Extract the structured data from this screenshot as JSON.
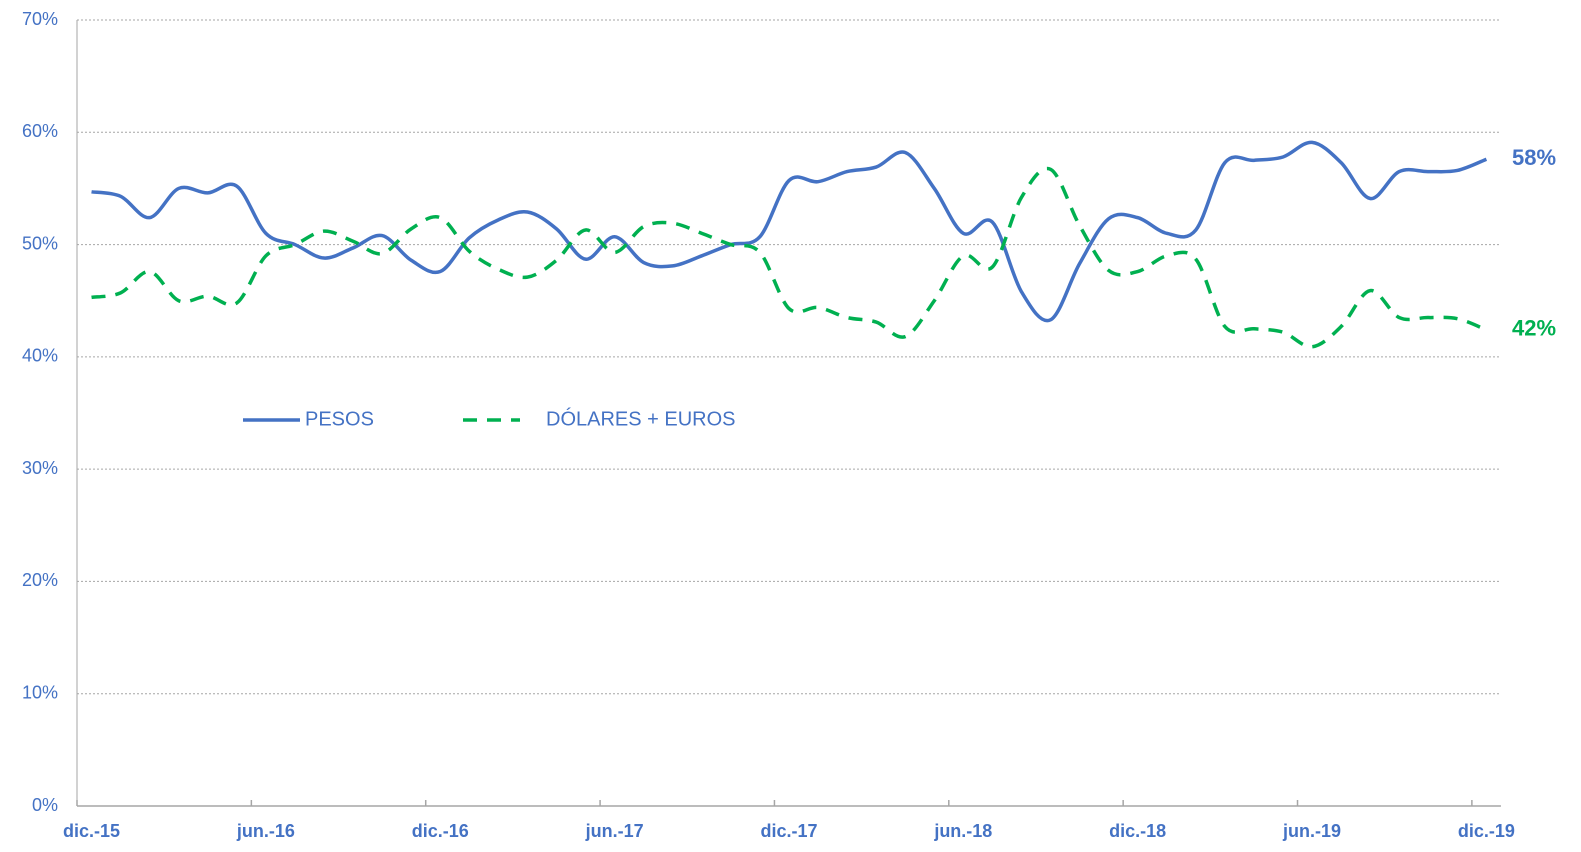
{
  "chart_data": {
    "type": "line",
    "categories": [
      "dic.-15",
      null,
      null,
      null,
      null,
      null,
      "jun.-16",
      null,
      null,
      null,
      null,
      null,
      "dic.-16",
      null,
      null,
      null,
      null,
      null,
      "jun.-17",
      null,
      null,
      null,
      null,
      null,
      "dic.-17",
      null,
      null,
      null,
      null,
      null,
      "jun.-18",
      null,
      null,
      null,
      null,
      null,
      "dic.-18",
      null,
      null,
      null,
      null,
      null,
      "jun.-19",
      null,
      null,
      null,
      null,
      null,
      "dic.-19"
    ],
    "series": [
      {
        "name": "PESOS",
        "color": "#4472c4",
        "dash": false,
        "values": [
          54.7,
          54.3,
          52.4,
          55.0,
          54.6,
          55.2,
          51.0,
          50.0,
          48.8,
          49.7,
          50.8,
          48.6,
          47.6,
          50.6,
          52.2,
          52.9,
          51.4,
          48.7,
          50.7,
          48.4,
          48.1,
          49.0,
          50.0,
          50.7,
          55.7,
          55.6,
          56.5,
          56.9,
          58.2,
          55.0,
          51.0,
          52.0,
          45.8,
          43.3,
          48.3,
          52.3,
          52.4,
          51.0,
          51.3,
          57.3,
          57.5,
          57.8,
          59.1,
          57.3,
          54.1,
          56.5,
          56.5,
          56.6,
          57.6
        ],
        "value_labels": [
          null,
          null,
          null,
          null,
          null,
          null,
          null,
          null,
          null,
          null,
          null,
          null,
          null,
          null,
          null,
          null,
          null,
          null,
          null,
          null,
          null,
          null,
          null,
          null,
          null,
          null,
          null,
          null,
          null,
          null,
          null,
          null,
          null,
          null,
          null,
          null,
          null,
          null,
          null,
          null,
          null,
          null,
          null,
          null,
          null,
          null,
          null,
          null,
          "58%"
        ]
      },
      {
        "name": "DÓLARES + EUROS",
        "color": "#00b050",
        "dash": true,
        "values": [
          45.3,
          45.7,
          47.6,
          45.0,
          45.4,
          44.8,
          49.0,
          50.0,
          51.2,
          50.3,
          49.2,
          51.4,
          52.4,
          49.4,
          47.8,
          47.1,
          48.6,
          51.3,
          49.3,
          51.6,
          51.9,
          51.0,
          50.0,
          49.3,
          44.3,
          44.4,
          43.5,
          43.1,
          41.8,
          45.0,
          49.0,
          48.0,
          54.2,
          56.7,
          51.7,
          47.7,
          47.6,
          49.0,
          48.7,
          42.7,
          42.5,
          42.2,
          40.9,
          42.7,
          45.9,
          43.5,
          43.5,
          43.4,
          42.4
        ],
        "value_labels": [
          null,
          null,
          null,
          null,
          null,
          null,
          null,
          null,
          null,
          null,
          null,
          null,
          null,
          null,
          null,
          null,
          null,
          null,
          null,
          null,
          null,
          null,
          null,
          null,
          null,
          null,
          null,
          null,
          null,
          null,
          null,
          null,
          null,
          null,
          null,
          null,
          null,
          null,
          null,
          null,
          null,
          null,
          null,
          null,
          null,
          null,
          null,
          null,
          "42%"
        ]
      }
    ],
    "ylim": [
      0,
      70
    ],
    "yticks": [
      {
        "value": 0,
        "label": "0%"
      },
      {
        "value": 10,
        "label": "10%"
      },
      {
        "value": 20,
        "label": "20%"
      },
      {
        "value": 30,
        "label": "30%"
      },
      {
        "value": 40,
        "label": "40%"
      },
      {
        "value": 50,
        "label": "50%"
      },
      {
        "value": 60,
        "label": "60%"
      },
      {
        "value": 70,
        "label": "70%"
      }
    ],
    "grid": true,
    "legend": "inside"
  }
}
